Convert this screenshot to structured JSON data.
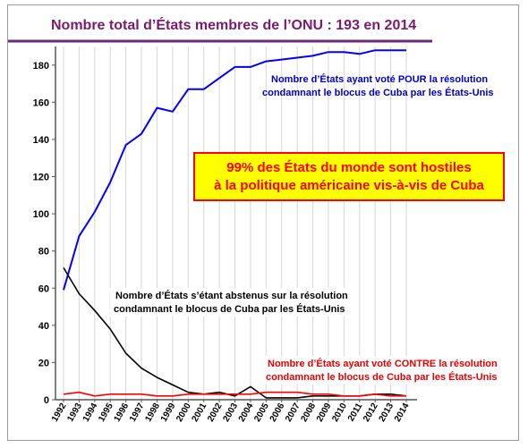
{
  "chart_data": {
    "type": "line",
    "title": "Nombre total d’États membres de l’ONU : 193 en 2014",
    "xlabel": "",
    "ylabel": "",
    "ylim": [
      0,
      190
    ],
    "yticks": [
      0,
      20,
      40,
      60,
      80,
      100,
      120,
      140,
      160,
      180
    ],
    "grid": true,
    "categories": [
      "1992",
      "1993",
      "1994",
      "1995",
      "1996",
      "1997",
      "1998",
      "1999",
      "2000",
      "2001",
      "2002",
      "2003",
      "2004",
      "2005",
      "2006",
      "2007",
      "2008",
      "2009",
      "2010",
      "2011",
      "2012",
      "2013",
      "2014"
    ],
    "series": [
      {
        "key": "pour",
        "color": "#0000ff",
        "values": [
          59,
          88,
          101,
          117,
          137,
          143,
          157,
          155,
          167,
          167,
          173,
          179,
          179,
          182,
          183,
          184,
          185,
          187,
          187,
          186,
          188,
          188,
          188
        ]
      },
      {
        "key": "abstention",
        "color": "#000000",
        "values": [
          71,
          57,
          48,
          38,
          25,
          17,
          12,
          8,
          4,
          3,
          4,
          2,
          7,
          1,
          1,
          1,
          2,
          2,
          2,
          2,
          3,
          3,
          2
        ]
      },
      {
        "key": "contre",
        "color": "#ff0000",
        "values": [
          3,
          4,
          2,
          3,
          3,
          3,
          2,
          2,
          3,
          3,
          3,
          3,
          3,
          4,
          4,
          4,
          3,
          3,
          2,
          2,
          3,
          2,
          2
        ]
      }
    ],
    "annotations": {
      "pour_line1": "Nombre d’États ayant voté POUR la résolution",
      "pour_line2": "condamnant le blocus de Cuba par les États-Unis",
      "abstention_line1": "Nombre d’États s’étant abstenus sur la résolution",
      "abstention_line2": "condamnant le blocus de Cuba par les États-Unis",
      "contre_line1": "Nombre d’États ayant voté CONTRE la résolution",
      "contre_line2": "condamnant le blocus de Cuba par les États-Unis",
      "callout_line1": "99% des États du monde sont hostiles",
      "callout_line2": "à la politique américaine vis-à-vis de Cuba"
    },
    "colors": {
      "title_text": "#7b1a6e",
      "title_rule": "#6b2a7a",
      "callout_fill": "#ffff00",
      "callout_border": "#ff0000",
      "callout_text": "#ff0000"
    }
  }
}
